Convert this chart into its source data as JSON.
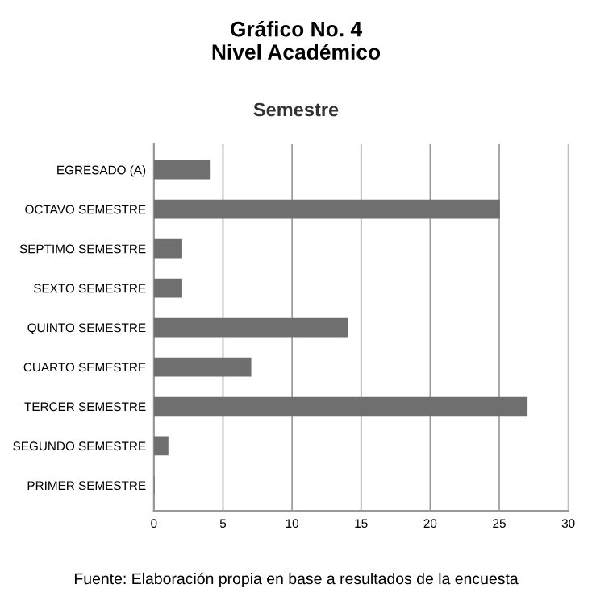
{
  "chart_data": {
    "type": "bar",
    "orientation": "horizontal",
    "title": "Gráfico No. 4\nNivel Académico",
    "subtitle": "Semestre",
    "categories": [
      "EGRESADO (A)",
      "OCTAVO SEMESTRE",
      "SEPTIMO SEMESTRE",
      "SEXTO SEMESTRE",
      "QUINTO SEMESTRE",
      "CUARTO SEMESTRE",
      "TERCER SEMESTRE",
      "SEGUNDO SEMESTRE",
      "PRIMER SEMESTRE"
    ],
    "values": [
      4,
      25,
      2,
      2,
      14,
      7,
      27,
      1,
      0
    ],
    "color": "#6f6f6f",
    "xlim": [
      0,
      30
    ],
    "xticks": [
      0,
      5,
      10,
      15,
      20,
      25,
      30
    ],
    "grid": "x",
    "annotations": [
      "Fuente: Elaboración propia en base a resultados de la encuesta"
    ]
  }
}
